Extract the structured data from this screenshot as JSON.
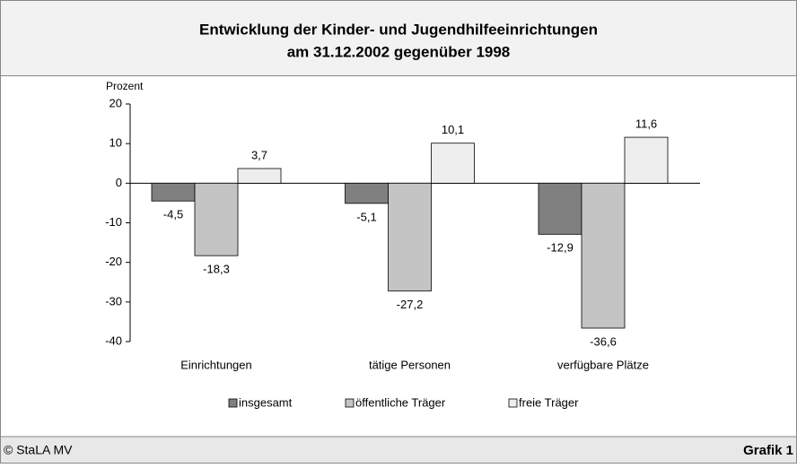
{
  "chart_data": {
    "type": "bar",
    "title": "Entwicklung der Kinder- und Jugendhilfeeinrichtungen",
    "subtitle": "am 31.12.2002 gegenüber 1998",
    "y_label": "Prozent",
    "categories": [
      "Einrichtungen",
      "tätige Personen",
      "verfügbare Plätze"
    ],
    "series": [
      {
        "name": "insgesamt",
        "color": "#808080",
        "values": [
          -4.5,
          -5.1,
          -12.9
        ],
        "value_labels": [
          "-4,5",
          "-5,1",
          "-12,9"
        ]
      },
      {
        "name": "öffentliche Träger",
        "color": "#c4c4c4",
        "values": [
          -18.3,
          -27.2,
          -36.6
        ],
        "value_labels": [
          "-18,3",
          "-27,2",
          "-36,6"
        ]
      },
      {
        "name": "freie Träger",
        "color": "#eeeeee",
        "values": [
          3.7,
          10.1,
          11.6
        ],
        "value_labels": [
          "3,7",
          "10,1",
          "11,6"
        ]
      }
    ],
    "ylim": [
      -40,
      20
    ],
    "yticks": [
      -40,
      -30,
      -20,
      -10,
      0,
      10,
      20
    ],
    "source": "© StaLA MV",
    "figure_label": "Grafik 1"
  }
}
